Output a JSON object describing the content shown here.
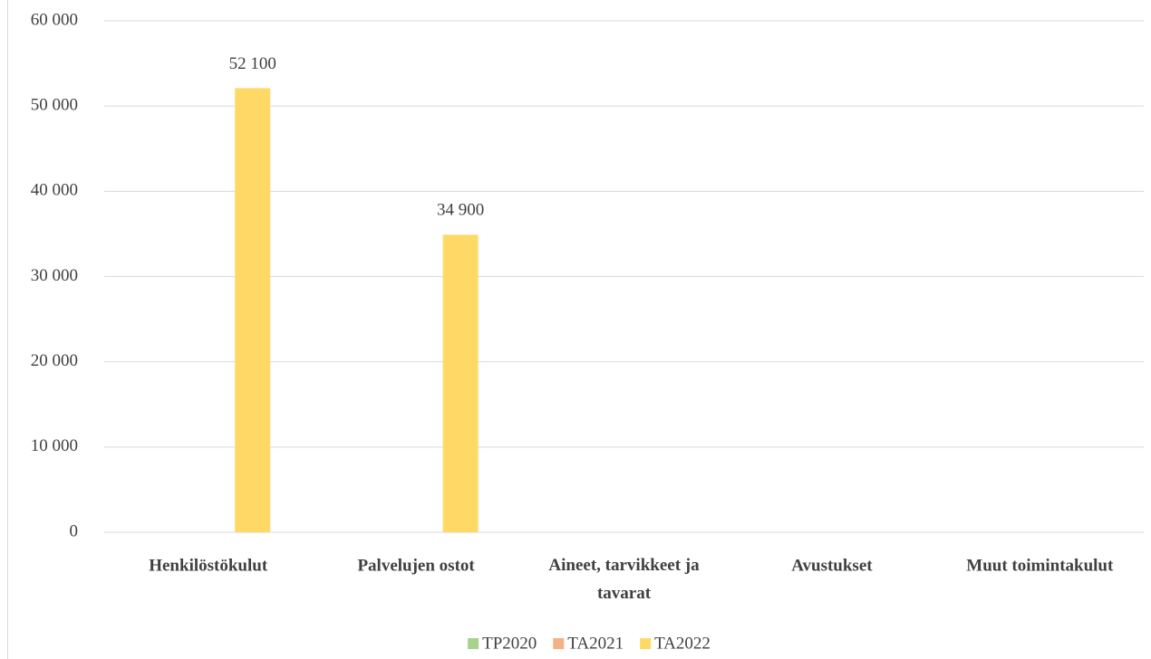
{
  "chart_data": {
    "type": "bar",
    "categories": [
      "Henkilöstökulut",
      "Palvelujen ostot",
      "Aineet, tarvikkeet ja tavarat",
      "Avustukset",
      "Muut toimintakulut"
    ],
    "series": [
      {
        "name": "TP2020",
        "color": "#a9d18e",
        "values": [
          null,
          null,
          null,
          null,
          null
        ]
      },
      {
        "name": "TA2021",
        "color": "#f4b183",
        "values": [
          null,
          null,
          null,
          null,
          null
        ]
      },
      {
        "name": "TA2022",
        "color": "#ffd966",
        "values": [
          52100,
          34900,
          null,
          null,
          null
        ],
        "value_labels": [
          "52 100",
          "34 900",
          null,
          null,
          null
        ]
      }
    ],
    "ylim": [
      0,
      60000
    ],
    "yticks": [
      0,
      {
        "value": 10000,
        "label": "10 000"
      },
      {
        "value": 20000,
        "label": "20 000"
      },
      {
        "value": 30000,
        "label": "30 000"
      },
      {
        "value": 40000,
        "label": "40 000"
      },
      {
        "value": 50000,
        "label": "50 000"
      },
      {
        "value": 60000,
        "label": "60 000"
      }
    ],
    "grid": true,
    "legend": "bottom"
  }
}
